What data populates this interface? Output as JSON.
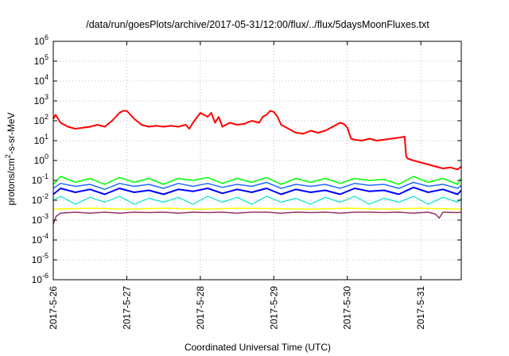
{
  "chart_data": {
    "type": "line",
    "title": "/data/run/goesPlots/archive/2017-05-31/12:00/flux/../flux/5daysMoonFluxes.txt",
    "xlabel": "Coordinated Universal Time (UTC)",
    "ylabel": {
      "base": "protons/cm",
      "sup": "2",
      "rest": "-s-sr-MeV"
    },
    "y_scale": "log",
    "ylim_exp": [
      -6,
      6
    ],
    "ytick_exponents": [
      -6,
      -5,
      -4,
      -3,
      -2,
      -1,
      0,
      1,
      2,
      3,
      4,
      5,
      6
    ],
    "ytick_base": "10",
    "x_tick_labels": [
      "2017-5-26",
      "2017-5-27",
      "2017-5-28",
      "2017-5-29",
      "2017-5-30",
      "2017-5-31"
    ],
    "x_range_days": [
      0,
      5.55
    ],
    "grid": true,
    "legend": "none",
    "series": [
      {
        "color": "#ff0000",
        "width": 2,
        "x_days": [
          0,
          0.03,
          0.1,
          0.2,
          0.3,
          0.4,
          0.5,
          0.6,
          0.7,
          0.8,
          0.9,
          0.95,
          1.0,
          1.05,
          1.1,
          1.2,
          1.3,
          1.4,
          1.5,
          1.6,
          1.7,
          1.8,
          1.85,
          1.9,
          2.0,
          2.05,
          2.1,
          2.15,
          2.2,
          2.25,
          2.3,
          2.4,
          2.5,
          2.6,
          2.7,
          2.8,
          2.85,
          2.9,
          2.95,
          3.0,
          3.05,
          3.1,
          3.2,
          3.3,
          3.4,
          3.5,
          3.6,
          3.7,
          3.8,
          3.9,
          3.95,
          4.0,
          4.05,
          4.1,
          4.2,
          4.3,
          4.4,
          4.5,
          4.6,
          4.7,
          4.78,
          4.8,
          4.82,
          4.9,
          5.0,
          5.1,
          5.2,
          5.3,
          5.4,
          5.5,
          5.55
        ],
        "y_log10": [
          2.1,
          2.3,
          1.9,
          1.7,
          1.6,
          1.65,
          1.7,
          1.8,
          1.7,
          2.0,
          2.4,
          2.5,
          2.5,
          2.3,
          2.1,
          1.8,
          1.7,
          1.75,
          1.7,
          1.75,
          1.7,
          1.8,
          1.6,
          1.9,
          2.4,
          2.3,
          2.2,
          2.4,
          1.9,
          2.2,
          1.7,
          1.9,
          1.8,
          1.85,
          2.0,
          1.9,
          2.2,
          2.3,
          2.5,
          2.45,
          2.2,
          1.8,
          1.6,
          1.4,
          1.35,
          1.5,
          1.4,
          1.5,
          1.7,
          1.9,
          1.85,
          1.65,
          1.1,
          1.05,
          1.0,
          1.1,
          1.0,
          1.05,
          1.1,
          1.15,
          1.2,
          0.2,
          0.1,
          0.0,
          -0.1,
          -0.2,
          -0.3,
          -0.4,
          -0.35,
          -0.45,
          -0.3
        ]
      },
      {
        "color": "#00ff00",
        "width": 1.5,
        "x_days": [
          0,
          0.1,
          0.3,
          0.5,
          0.7,
          0.9,
          1.1,
          1.3,
          1.5,
          1.7,
          1.9,
          2.1,
          2.3,
          2.5,
          2.7,
          2.9,
          3.1,
          3.3,
          3.5,
          3.7,
          3.9,
          4.1,
          4.3,
          4.5,
          4.7,
          4.9,
          5.1,
          5.3,
          5.5,
          5.55
        ],
        "y_log10": [
          -1.2,
          -0.8,
          -1.1,
          -0.9,
          -1.2,
          -0.85,
          -1.1,
          -0.9,
          -1.2,
          -0.9,
          -1.0,
          -0.85,
          -1.15,
          -0.9,
          -1.1,
          -0.85,
          -1.2,
          -0.9,
          -1.1,
          -0.9,
          -1.15,
          -0.9,
          -1.0,
          -0.95,
          -1.2,
          -0.8,
          -1.1,
          -0.9,
          -1.2,
          -0.9
        ]
      },
      {
        "color": "#0000ff",
        "width": 2,
        "x_days": [
          0,
          0.1,
          0.3,
          0.5,
          0.7,
          0.9,
          1.1,
          1.3,
          1.5,
          1.7,
          1.9,
          2.1,
          2.3,
          2.5,
          2.7,
          2.9,
          3.1,
          3.3,
          3.5,
          3.7,
          3.9,
          4.1,
          4.3,
          4.5,
          4.7,
          4.9,
          5.1,
          5.3,
          5.5,
          5.55
        ],
        "y_log10": [
          -1.7,
          -1.4,
          -1.6,
          -1.45,
          -1.7,
          -1.4,
          -1.6,
          -1.5,
          -1.7,
          -1.45,
          -1.55,
          -1.4,
          -1.65,
          -1.45,
          -1.6,
          -1.4,
          -1.7,
          -1.45,
          -1.6,
          -1.5,
          -1.7,
          -1.4,
          -1.55,
          -1.5,
          -1.7,
          -1.35,
          -1.6,
          -1.45,
          -1.7,
          -1.5
        ]
      },
      {
        "color": "#1e6cff",
        "width": 1.5,
        "x_days": [
          0,
          0.1,
          0.3,
          0.5,
          0.7,
          0.9,
          1.1,
          1.3,
          1.5,
          1.7,
          1.9,
          2.1,
          2.3,
          2.5,
          2.7,
          2.9,
          3.1,
          3.3,
          3.5,
          3.7,
          3.9,
          4.1,
          4.3,
          4.5,
          4.7,
          4.9,
          5.1,
          5.3,
          5.5,
          5.55
        ],
        "y_log10": [
          -1.4,
          -1.15,
          -1.3,
          -1.2,
          -1.45,
          -1.15,
          -1.3,
          -1.2,
          -1.4,
          -1.15,
          -1.3,
          -1.15,
          -1.35,
          -1.2,
          -1.3,
          -1.1,
          -1.4,
          -1.2,
          -1.3,
          -1.2,
          -1.4,
          -1.15,
          -1.25,
          -1.2,
          -1.4,
          -1.1,
          -1.3,
          -1.2,
          -1.4,
          -1.25
        ]
      },
      {
        "color": "#00e5c8",
        "width": 1.2,
        "x_days": [
          0,
          0.1,
          0.3,
          0.5,
          0.7,
          0.9,
          1.1,
          1.3,
          1.5,
          1.7,
          1.9,
          2.1,
          2.3,
          2.5,
          2.7,
          2.9,
          3.1,
          3.3,
          3.5,
          3.7,
          3.9,
          4.1,
          4.3,
          4.5,
          4.7,
          4.9,
          5.1,
          5.3,
          5.5,
          5.55
        ],
        "y_log10": [
          -2.0,
          -1.8,
          -2.2,
          -1.85,
          -2.1,
          -1.8,
          -2.2,
          -1.9,
          -2.1,
          -1.85,
          -2.2,
          -1.8,
          -2.1,
          -1.85,
          -2.2,
          -1.8,
          -2.1,
          -1.9,
          -2.2,
          -1.85,
          -2.1,
          -1.8,
          -2.2,
          -1.9,
          -2.1,
          -1.8,
          -2.2,
          -1.85,
          -2.1,
          -1.9
        ]
      },
      {
        "color": "#ffff00",
        "width": 1.5,
        "x_days": [
          0,
          0.5,
          1.0,
          1.5,
          2.0,
          2.5,
          3.0,
          3.5,
          4.0,
          4.5,
          5.0,
          5.55
        ],
        "y_log10": [
          -2.45,
          -2.4,
          -2.45,
          -2.4,
          -2.45,
          -2.4,
          -2.42,
          -2.45,
          -2.4,
          -2.45,
          -2.4,
          -2.45
        ]
      },
      {
        "color": "#993366",
        "width": 1.5,
        "x_days": [
          0,
          0.04,
          0.1,
          0.3,
          0.5,
          0.7,
          0.9,
          1.1,
          1.3,
          1.5,
          1.7,
          1.9,
          2.1,
          2.3,
          2.5,
          2.7,
          2.9,
          3.1,
          3.3,
          3.5,
          3.7,
          3.9,
          4.1,
          4.3,
          4.5,
          4.7,
          4.9,
          5.1,
          5.2,
          5.25,
          5.3,
          5.5,
          5.55
        ],
        "y_log10": [
          -3.2,
          -2.8,
          -2.65,
          -2.6,
          -2.65,
          -2.6,
          -2.65,
          -2.6,
          -2.62,
          -2.6,
          -2.65,
          -2.6,
          -2.62,
          -2.6,
          -2.65,
          -2.6,
          -2.6,
          -2.65,
          -2.6,
          -2.62,
          -2.6,
          -2.65,
          -2.6,
          -2.6,
          -2.62,
          -2.6,
          -2.65,
          -2.6,
          -2.7,
          -2.9,
          -2.6,
          -2.62,
          -2.6
        ]
      }
    ]
  }
}
